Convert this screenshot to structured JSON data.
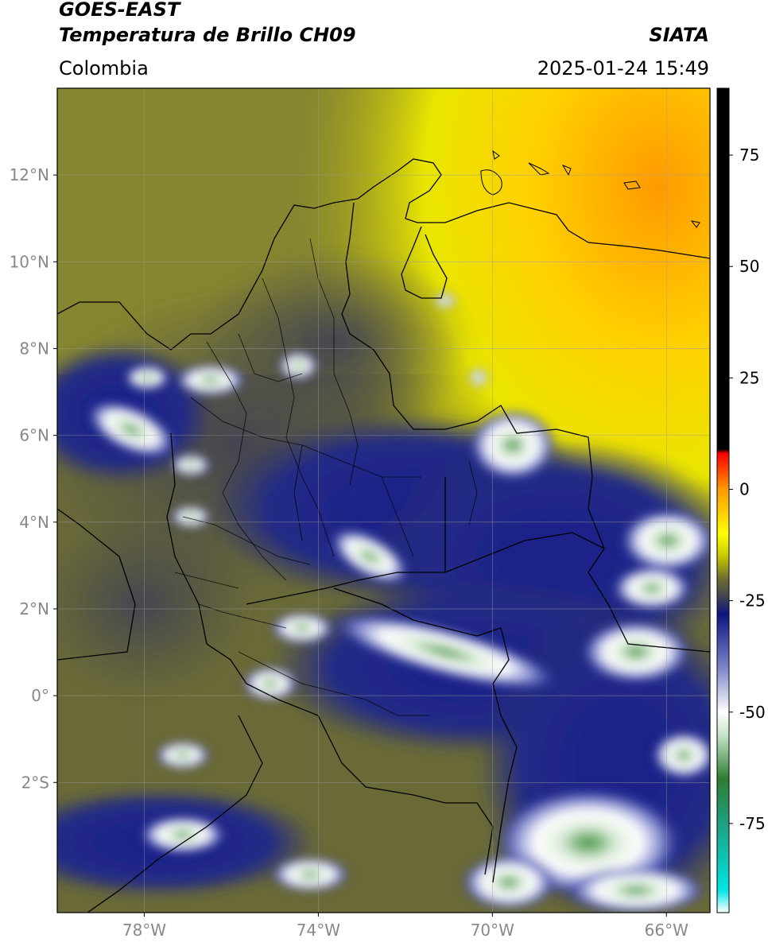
{
  "header": {
    "title_line1": "GOES-EAST",
    "title_line2": "Temperatura de Brillo CH09",
    "brand": "SIATA",
    "region": "Colombia",
    "datetime": "2025-01-24 15:49"
  },
  "map": {
    "lon_range": [
      -80,
      -65
    ],
    "lat_range": [
      -5,
      14
    ],
    "lat_ticks": [
      {
        "value": 12,
        "label": "12°N"
      },
      {
        "value": 10,
        "label": "10°N"
      },
      {
        "value": 8,
        "label": "8°N"
      },
      {
        "value": 6,
        "label": "6°N"
      },
      {
        "value": 4,
        "label": "4°N"
      },
      {
        "value": 2,
        "label": "2°N"
      },
      {
        "value": 0,
        "label": "0°"
      },
      {
        "value": -2,
        "label": "2°S"
      }
    ],
    "lon_ticks": [
      {
        "value": -78,
        "label": "78°W"
      },
      {
        "value": -74,
        "label": "74°W"
      },
      {
        "value": -70,
        "label": "70°W"
      },
      {
        "value": -66,
        "label": "66°W"
      }
    ],
    "grid": true
  },
  "colorbar": {
    "range": [
      -95,
      90
    ],
    "ticks": [
      {
        "value": 75,
        "label": "75"
      },
      {
        "value": 50,
        "label": "50"
      },
      {
        "value": 25,
        "label": "25"
      },
      {
        "value": 0,
        "label": "0"
      },
      {
        "value": -25,
        "label": "-25"
      },
      {
        "value": -50,
        "label": "-50"
      },
      {
        "value": -75,
        "label": "-75"
      }
    ],
    "stops": [
      {
        "value": -95,
        "color": "#ffffff"
      },
      {
        "value": -90,
        "color": "#00e5e5"
      },
      {
        "value": -75,
        "color": "#1fa080"
      },
      {
        "value": -65,
        "color": "#2e7d32"
      },
      {
        "value": -55,
        "color": "#c8e6c9"
      },
      {
        "value": -50,
        "color": "#ffffff"
      },
      {
        "value": -40,
        "color": "#7b84c9"
      },
      {
        "value": -28,
        "color": "#0d1580"
      },
      {
        "value": -24,
        "color": "#444450"
      },
      {
        "value": -20,
        "color": "#6e6e30"
      },
      {
        "value": -15,
        "color": "#c8c800"
      },
      {
        "value": -10,
        "color": "#ffff00"
      },
      {
        "value": 0,
        "color": "#ff9900"
      },
      {
        "value": 8,
        "color": "#ff0000"
      },
      {
        "value": 9,
        "color": "#000000"
      },
      {
        "value": 90,
        "color": "#000000"
      }
    ]
  }
}
